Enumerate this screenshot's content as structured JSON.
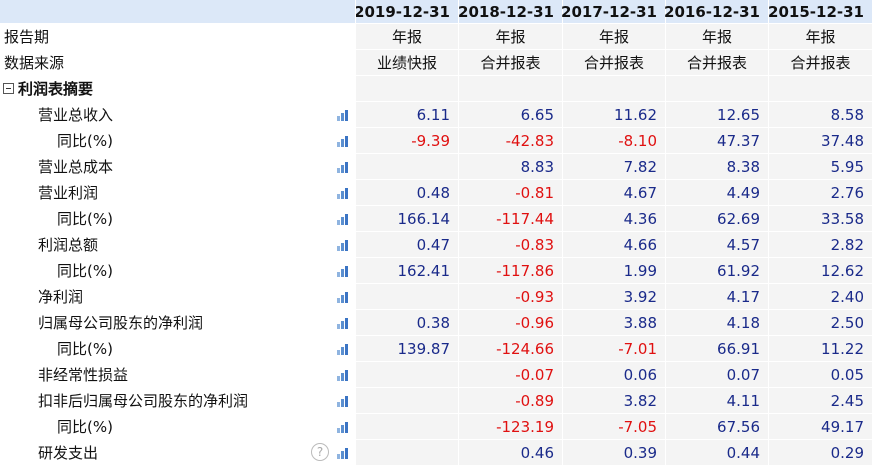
{
  "table": {
    "columns": [
      "2019-12-31",
      "2018-12-31",
      "2017-12-31",
      "2016-12-31",
      "2015-12-31"
    ],
    "info_rows": [
      {
        "label": "报告期",
        "values": [
          "年报",
          "年报",
          "年报",
          "年报",
          "年报"
        ]
      },
      {
        "label": "数据来源",
        "values": [
          "业绩快报",
          "合并报表",
          "合并报表",
          "合并报表",
          "合并报表"
        ]
      }
    ],
    "section": {
      "title": "利润表摘要",
      "items": [
        {
          "label": "营业总收入",
          "values": [
            "6.11",
            "6.65",
            "11.62",
            "12.65",
            "8.58"
          ],
          "growth": {
            "label": "同比(%)",
            "values": [
              "-9.39",
              "-42.83",
              "-8.10",
              "47.37",
              "37.48"
            ]
          }
        },
        {
          "label": "营业总成本",
          "values": [
            null,
            "8.83",
            "7.82",
            "8.38",
            "5.95"
          ]
        },
        {
          "label": "营业利润",
          "values": [
            "0.48",
            "-0.81",
            "4.67",
            "4.49",
            "2.76"
          ],
          "growth": {
            "label": "同比(%)",
            "values": [
              "166.14",
              "-117.44",
              "4.36",
              "62.69",
              "33.58"
            ]
          }
        },
        {
          "label": "利润总额",
          "values": [
            "0.47",
            "-0.83",
            "4.66",
            "4.57",
            "2.82"
          ],
          "growth": {
            "label": "同比(%)",
            "values": [
              "162.41",
              "-117.86",
              "1.99",
              "61.92",
              "12.62"
            ]
          }
        },
        {
          "label": "净利润",
          "values": [
            null,
            "-0.93",
            "3.92",
            "4.17",
            "2.40"
          ]
        },
        {
          "label": "归属母公司股东的净利润",
          "values": [
            "0.38",
            "-0.96",
            "3.88",
            "4.18",
            "2.50"
          ],
          "growth": {
            "label": "同比(%)",
            "values": [
              "139.87",
              "-124.66",
              "-7.01",
              "66.91",
              "11.22"
            ]
          }
        },
        {
          "label": "非经常性损益",
          "values": [
            null,
            "-0.07",
            "0.06",
            "0.07",
            "0.05"
          ]
        },
        {
          "label": "扣非后归属母公司股东的净利润",
          "values": [
            null,
            "-0.89",
            "3.82",
            "4.11",
            "2.45"
          ],
          "growth": {
            "label": "同比(%)",
            "values": [
              null,
              "-123.19",
              "-7.05",
              "67.56",
              "49.17"
            ]
          }
        },
        {
          "label": "研发支出",
          "values": [
            null,
            "0.46",
            "0.39",
            "0.44",
            "0.29"
          ],
          "help": true
        }
      ]
    }
  }
}
